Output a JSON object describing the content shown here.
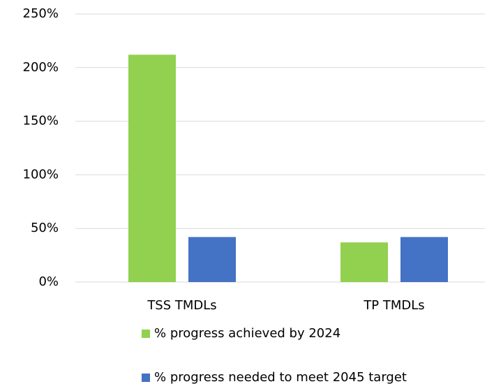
{
  "chart_data": {
    "type": "bar",
    "categories": [
      "TSS TMDLs",
      "TP TMDLs"
    ],
    "series": [
      {
        "name": "% progress achieved by 2024",
        "color": "#92d050",
        "values": [
          212,
          37
        ]
      },
      {
        "name": "% progress needed to meet 2045 target",
        "color": "#4472c4",
        "values": [
          42,
          42
        ]
      }
    ],
    "ylim": [
      0,
      250
    ],
    "yticks": [
      {
        "value": 0,
        "label": "0%"
      },
      {
        "value": 50,
        "label": "50%"
      },
      {
        "value": 100,
        "label": "100%"
      },
      {
        "value": 150,
        "label": "150%"
      },
      {
        "value": 200,
        "label": "200%"
      },
      {
        "value": 250,
        "label": "250%"
      }
    ],
    "grid": true,
    "legend": "bottom"
  }
}
